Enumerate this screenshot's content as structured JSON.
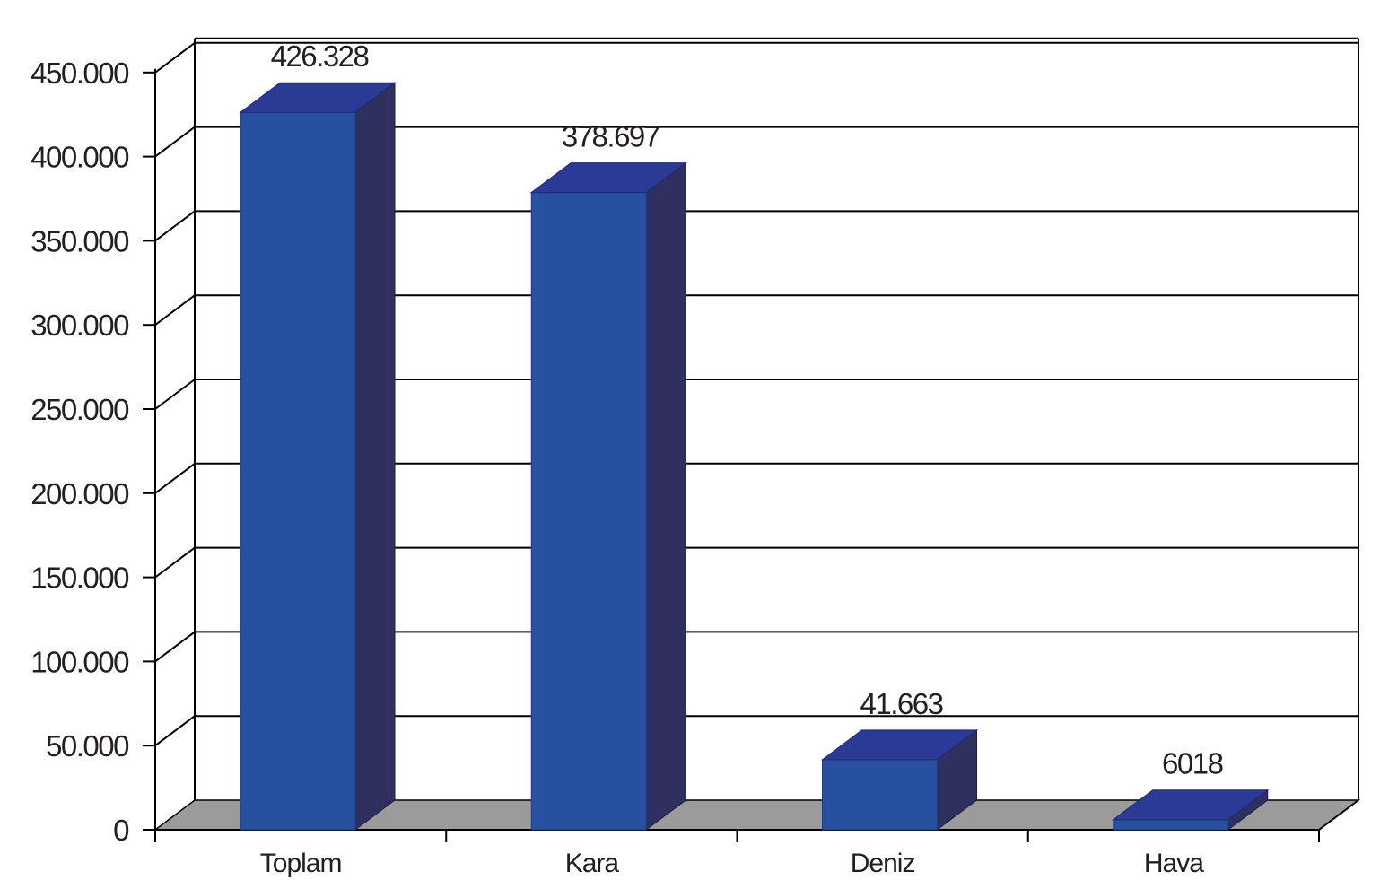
{
  "chart_data": {
    "type": "bar",
    "style": "3d-column",
    "categories": [
      "Toplam",
      "Kara",
      "Deniz",
      "Hava"
    ],
    "values": [
      426328,
      378697,
      41663,
      6018
    ],
    "data_labels": [
      "426.328",
      "378.697",
      "41.663",
      "6018"
    ],
    "ylim": [
      0,
      450000
    ],
    "yticks": [
      0,
      50000,
      100000,
      150000,
      200000,
      250000,
      300000,
      350000,
      400000,
      450000
    ],
    "ytick_labels": [
      "0",
      "50.000",
      "100.000",
      "150.000",
      "200.000",
      "250.000",
      "300.000",
      "350.000",
      "400.000",
      "450.000"
    ],
    "title": "",
    "xlabel": "",
    "ylabel": "",
    "grid": true,
    "legend": "none",
    "colors": {
      "bar_front": "#2850a0",
      "bar_top": "#2b3a94",
      "bar_side": "#2f3060",
      "floor": "#9b9b9b",
      "grid": "#000000",
      "text": "#231f20"
    }
  }
}
